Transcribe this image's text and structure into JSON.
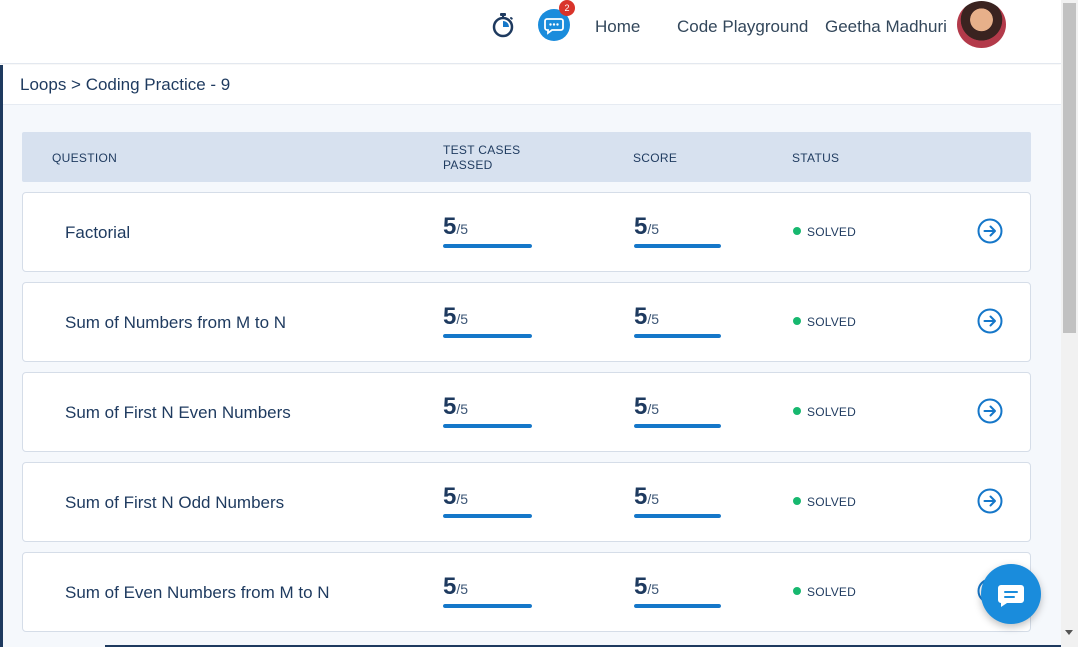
{
  "nav": {
    "notification_count": "2",
    "home_label": "Home",
    "playground_label": "Code Playground",
    "user_name": "Geetha Madhuri"
  },
  "breadcrumb": "Loops > Coding Practice - 9",
  "table": {
    "headers": {
      "question": "QUESTION",
      "test_cases": "TEST CASES PASSED",
      "score": "SCORE",
      "status": "STATUS"
    },
    "rows": [
      {
        "question": "Factorial",
        "tests_passed": "5",
        "tests_total": "/5",
        "tests_progress": 1.0,
        "score": "5",
        "score_total": "/5",
        "score_progress": 1.0,
        "status": "SOLVED"
      },
      {
        "question": "Sum of Numbers from M to N",
        "tests_passed": "5",
        "tests_total": "/5",
        "tests_progress": 1.0,
        "score": "5",
        "score_total": "/5",
        "score_progress": 1.0,
        "status": "SOLVED"
      },
      {
        "question": "Sum of First N Even Numbers",
        "tests_passed": "5",
        "tests_total": "/5",
        "tests_progress": 1.0,
        "score": "5",
        "score_total": "/5",
        "score_progress": 1.0,
        "status": "SOLVED"
      },
      {
        "question": "Sum of First N Odd Numbers",
        "tests_passed": "5",
        "tests_total": "/5",
        "tests_progress": 1.0,
        "score": "5",
        "score_total": "/5",
        "score_progress": 1.0,
        "status": "SOLVED"
      },
      {
        "question": "Sum of Even Numbers from M to N",
        "tests_passed": "5",
        "tests_total": "/5",
        "tests_progress": 1.0,
        "score": "5",
        "score_total": "/5",
        "score_progress": 1.0,
        "status": "SOLVED"
      }
    ]
  },
  "colors": {
    "accent": "#1577c9",
    "solved": "#17b86f",
    "text_primary": "#1e3a5f",
    "header_bg": "#d7e1ef"
  },
  "icons": {
    "timer": "stopwatch-icon",
    "chat": "chat-bubble-icon",
    "row_action": "arrow-right-circle-icon",
    "fab": "chat-support-icon"
  }
}
